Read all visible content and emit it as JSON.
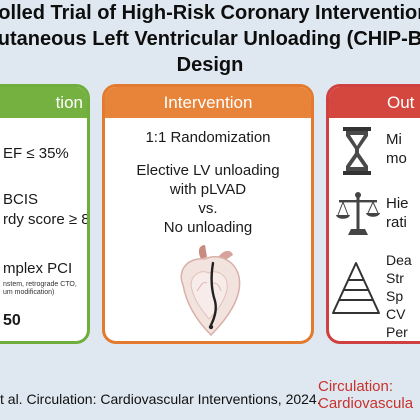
{
  "title": {
    "line1": "rolled Trial of High-Risk Coronary Intervention",
    "line2": "utaneous Left Ventricular Unloading (CHIP-B",
    "line3": "Design"
  },
  "left_panel": {
    "header": "tion",
    "items": [
      "EF ≤ 35%",
      "BCIS",
      "rdy score ≥ 8",
      "mplex PCI",
      "nstem, retrograde CTO,",
      "um modification)",
      "50"
    ]
  },
  "intervention": {
    "header": "Intervention",
    "randomization": "1:1 Randomization",
    "arm1_line1": "Elective LV unloading",
    "arm1_line2": "with pLVAD",
    "vs": "vs.",
    "arm2": "No unloading"
  },
  "outcomes": {
    "header": "Out",
    "item1_line1": "Mi",
    "item1_line2": "mo",
    "item2_line1": "Hie",
    "item2_line2": "rati",
    "item3_lines": [
      "Dea",
      "Str",
      "Sp",
      "CV",
      "Per"
    ]
  },
  "footer": {
    "citation": "t al. Circulation: Cardiovascular Interventions, 2024.",
    "journal_line1": "Circulation:",
    "journal_line2": "Cardiovascula"
  },
  "colors": {
    "green": "#74b140",
    "orange": "#e8843a",
    "red": "#d4473f",
    "background": "#dfe8f0",
    "journal_red": "#c8322c"
  },
  "icons": [
    "heart-pump-icon",
    "hourglass-icon",
    "balance-scale-icon",
    "pyramid-icon"
  ]
}
